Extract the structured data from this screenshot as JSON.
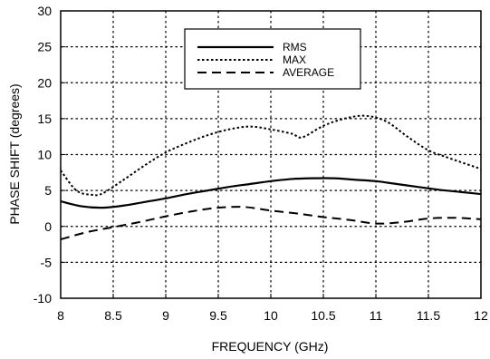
{
  "chart_data": {
    "type": "line",
    "xlabel": "FREQUENCY (GHz)",
    "ylabel": "PHASE SHIFT (degrees)",
    "xlim": [
      8,
      12
    ],
    "ylim": [
      -10,
      30
    ],
    "xticks": [
      "8",
      "8.5",
      "9",
      "9.5",
      "10",
      "10.5",
      "11",
      "11.5",
      "12"
    ],
    "yticks": [
      "30",
      "25",
      "20",
      "15",
      "10",
      "5",
      "0",
      "-5",
      "-10"
    ],
    "grid": true,
    "legend_position": "top-center",
    "series": [
      {
        "name": "RMS",
        "style": "solid",
        "x": [
          8.0,
          8.2,
          8.4,
          8.6,
          8.8,
          9.0,
          9.2,
          9.4,
          9.6,
          9.8,
          10.0,
          10.2,
          10.4,
          10.6,
          10.8,
          11.0,
          11.2,
          11.4,
          11.6,
          11.8,
          12.0
        ],
        "y": [
          3.5,
          2.8,
          2.6,
          2.9,
          3.4,
          3.9,
          4.5,
          5.0,
          5.5,
          5.9,
          6.3,
          6.6,
          6.7,
          6.7,
          6.5,
          6.3,
          5.9,
          5.5,
          5.1,
          4.8,
          4.5
        ]
      },
      {
        "name": "MAX",
        "style": "dotted",
        "x": [
          8.0,
          8.15,
          8.3,
          8.4,
          8.6,
          8.8,
          9.0,
          9.2,
          9.4,
          9.6,
          9.8,
          10.0,
          10.2,
          10.3,
          10.5,
          10.7,
          10.9,
          11.1,
          11.3,
          11.5,
          11.7,
          12.0
        ],
        "y": [
          7.8,
          5.0,
          4.4,
          4.6,
          6.5,
          8.5,
          10.3,
          11.6,
          12.7,
          13.5,
          13.9,
          13.5,
          12.9,
          12.4,
          14.0,
          15.0,
          15.4,
          14.6,
          12.5,
          10.6,
          9.5,
          8.0
        ]
      },
      {
        "name": "AVERAGE",
        "style": "dashed",
        "x": [
          8.0,
          8.25,
          8.5,
          8.75,
          9.0,
          9.25,
          9.5,
          9.75,
          10.0,
          10.25,
          10.5,
          10.75,
          11.0,
          11.25,
          11.5,
          11.75,
          12.0
        ],
        "y": [
          -1.8,
          -0.8,
          -0.1,
          0.6,
          1.4,
          2.1,
          2.6,
          2.7,
          2.2,
          1.8,
          1.3,
          0.9,
          0.4,
          0.6,
          1.1,
          1.2,
          1.0
        ]
      }
    ]
  }
}
